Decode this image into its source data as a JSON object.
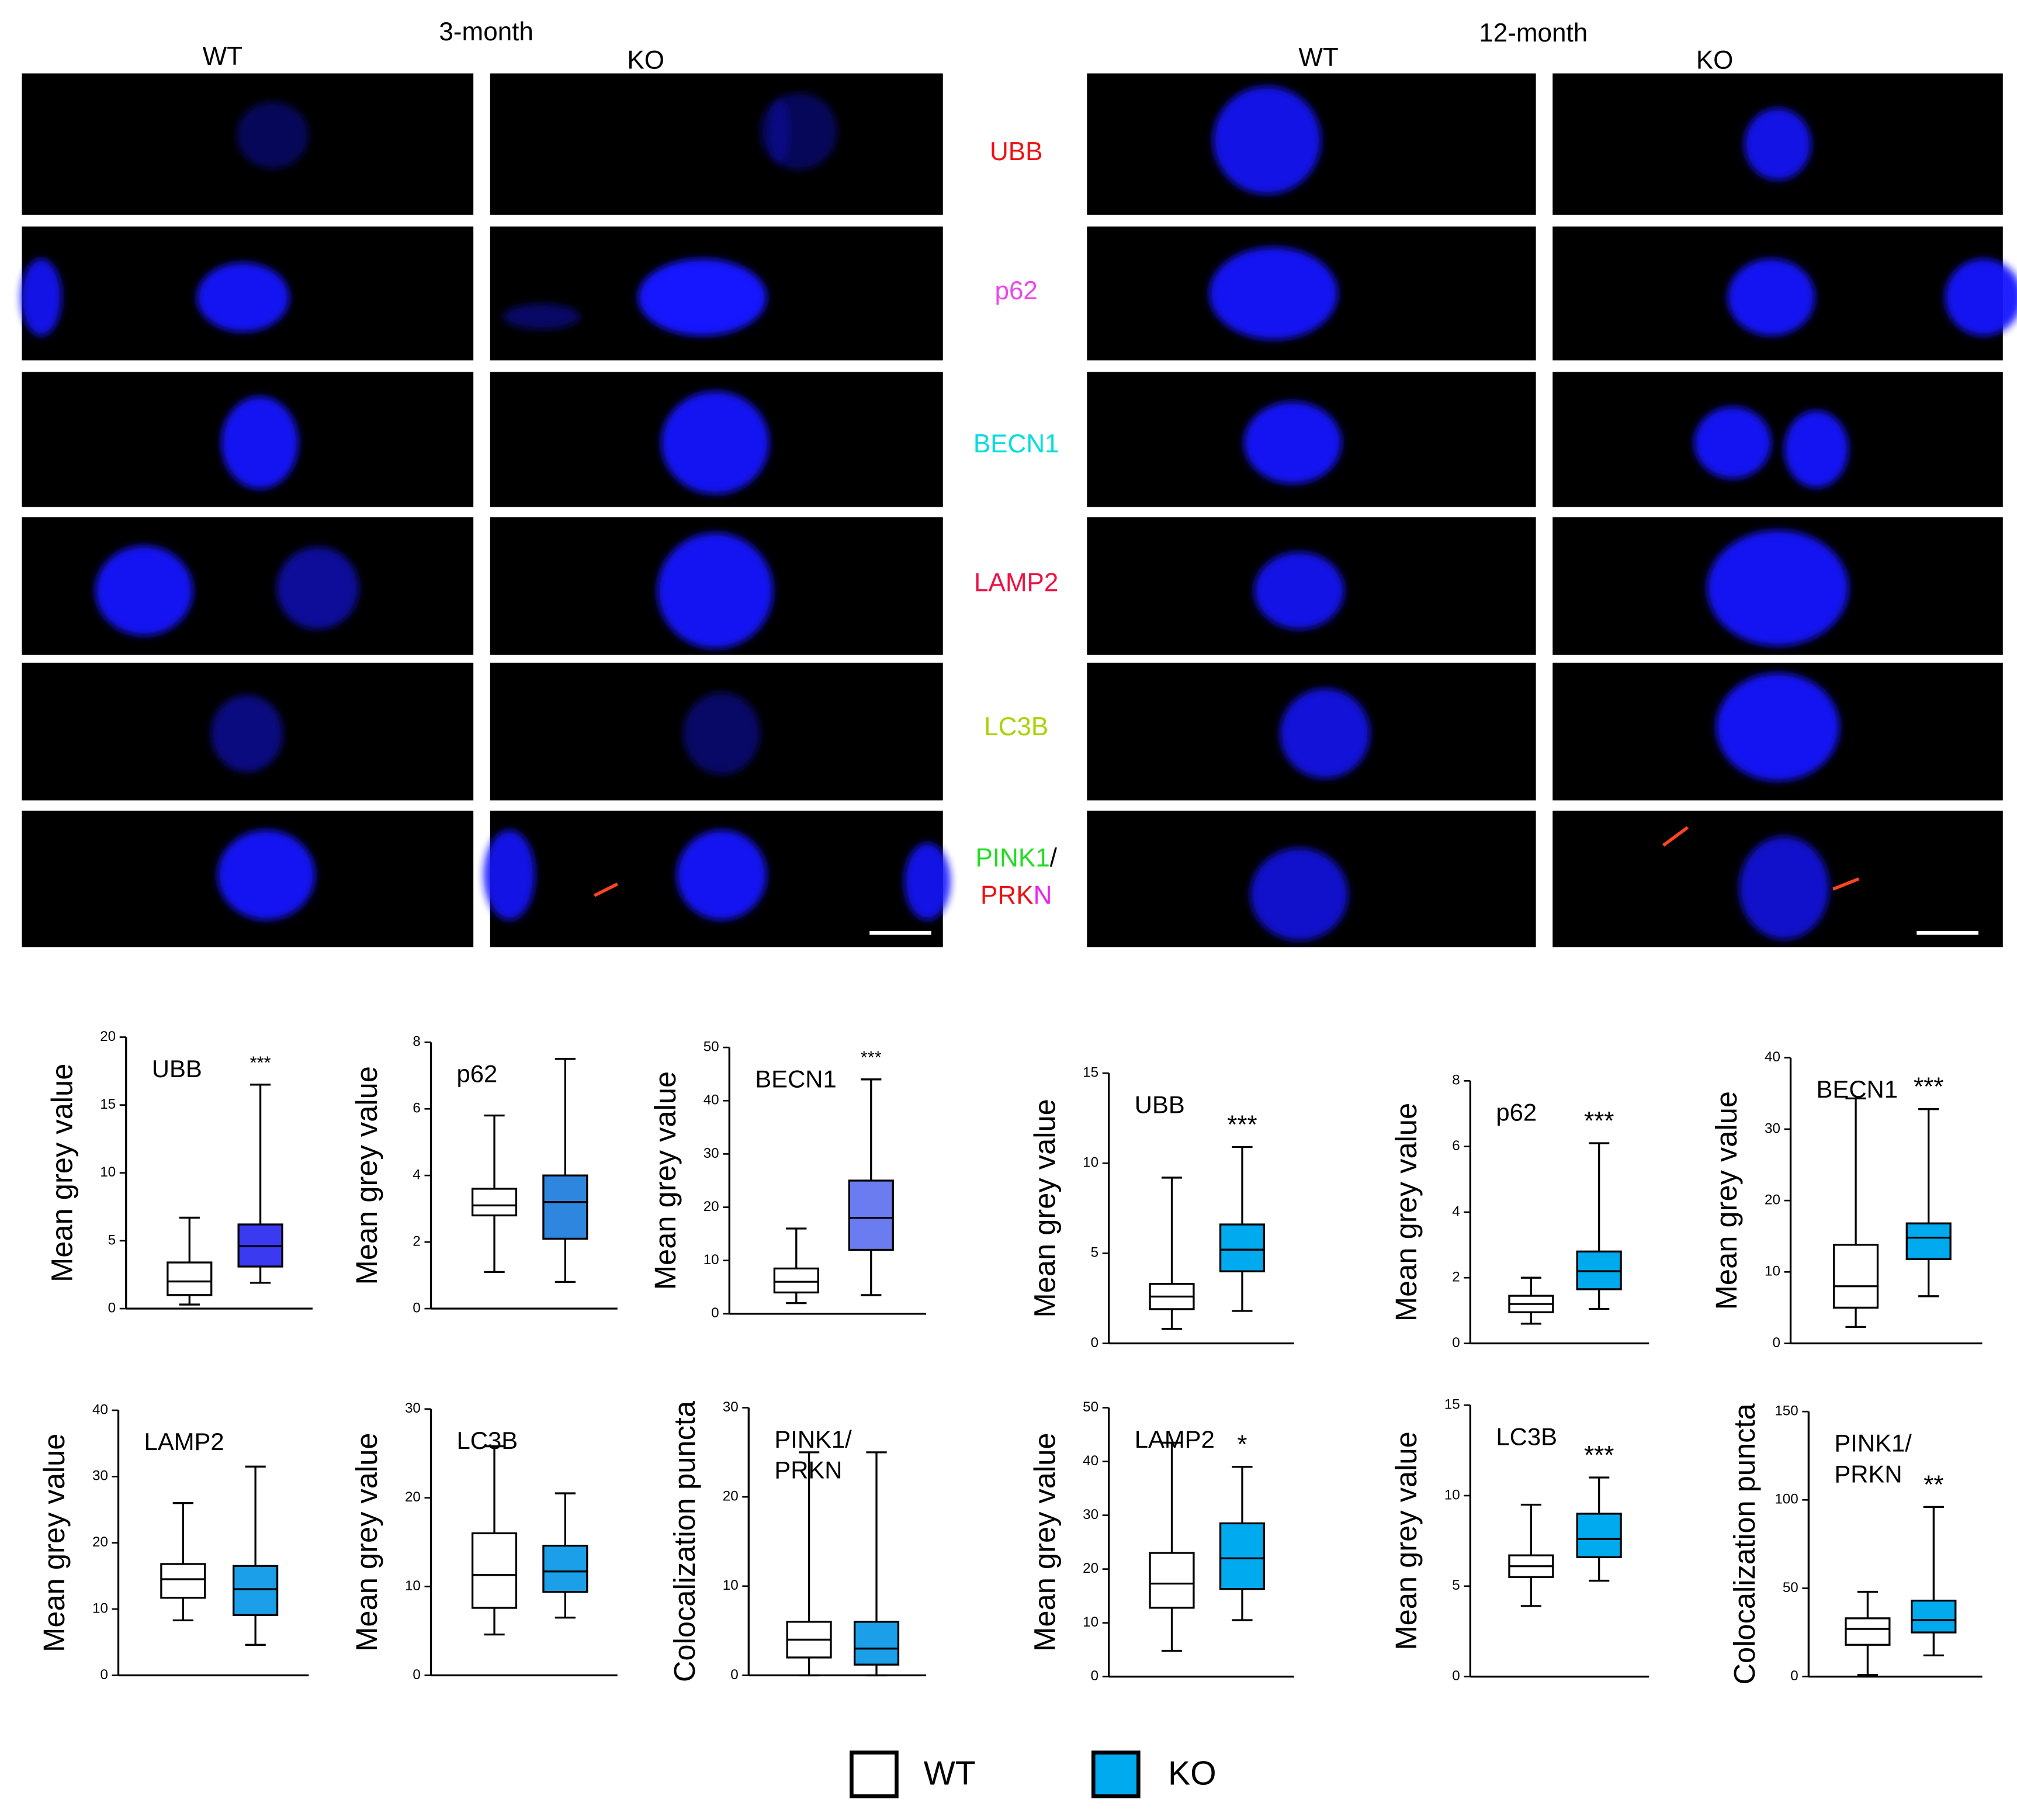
{
  "figure": {
    "headers": [
      {
        "text": "3-month",
        "x": 378,
        "y": 26
      },
      {
        "text": "WT",
        "x": 173,
        "y": 45
      },
      {
        "text": "KO",
        "x": 502,
        "y": 48
      },
      {
        "text": "12-month",
        "x": 1192,
        "y": 27
      },
      {
        "text": "WT",
        "x": 1025,
        "y": 46
      },
      {
        "text": "KO",
        "x": 1333,
        "y": 48
      }
    ],
    "row_labels": [
      [
        [
          {
            "text": "UBB",
            "color": "#ee1111"
          }
        ]
      ],
      [
        [
          {
            "text": "p62",
            "color": "#ee44ee"
          }
        ]
      ],
      [
        [
          {
            "text": "BECN1",
            "color": "#00dddd"
          }
        ]
      ],
      [
        [
          {
            "text": "LAMP2",
            "color": "#ee1144"
          }
        ]
      ],
      [
        [
          {
            "text": "LC3B",
            "color": "#a6d400"
          }
        ]
      ],
      [
        [
          {
            "text": "PINK1",
            "color": "#22dd22"
          },
          {
            "text": "/",
            "color": "#000000"
          }
        ],
        [
          {
            "text": "PRK",
            "color": "#ee1111"
          },
          {
            "text": "N",
            "color": "#ee22ee"
          }
        ]
      ]
    ]
  },
  "legend": [
    {
      "name": "WT",
      "color": "#ffffff"
    },
    {
      "name": "KO",
      "color": "#00aaee"
    }
  ],
  "chart_data": [
    {
      "type": "box",
      "title": "UBB",
      "annotation": "***",
      "ylabel": "Mean grey value",
      "ylim": [
        0,
        20
      ],
      "yticks": [
        0,
        5,
        10,
        15,
        20
      ],
      "series": [
        {
          "color": "#ffffff",
          "values": [
            0.3,
            1,
            2,
            3.4,
            6.7
          ]
        },
        {
          "color": "#3a3af0",
          "values": [
            1.9,
            3.1,
            4.6,
            6.2,
            16.5
          ]
        }
      ]
    },
    {
      "type": "box",
      "title": "p62",
      "ylabel": "Mean grey value",
      "ylim": [
        0,
        8
      ],
      "yticks": [
        0,
        2,
        4,
        6,
        8
      ],
      "series": [
        {
          "color": "#ffffff",
          "values": [
            1.1,
            2.8,
            3.1,
            3.6,
            5.8
          ]
        },
        {
          "color": "#2e86de",
          "values": [
            0.8,
            2.1,
            3.2,
            4.0,
            7.5
          ]
        }
      ]
    },
    {
      "type": "box",
      "title": "BECN1",
      "annotation": "***",
      "ylabel": "Mean grey value",
      "ylim": [
        0,
        50
      ],
      "yticks": [
        0,
        10,
        20,
        30,
        40,
        50
      ],
      "series": [
        {
          "color": "#ffffff",
          "values": [
            2,
            4,
            6,
            8.5,
            16
          ]
        },
        {
          "color": "#6b7bf0",
          "values": [
            3.5,
            12,
            18,
            25,
            44
          ]
        }
      ]
    },
    {
      "type": "box",
      "title": "UBB",
      "annotation": "***",
      "ylabel": "Mean grey value",
      "ylim": [
        0,
        15
      ],
      "yticks": [
        0,
        5,
        10,
        15
      ],
      "series": [
        {
          "color": "#ffffff",
          "values": [
            0.8,
            1.9,
            2.6,
            3.3,
            9.2
          ]
        },
        {
          "color": "#00aaee",
          "values": [
            1.8,
            4,
            5.2,
            6.6,
            10.9
          ]
        }
      ]
    },
    {
      "type": "box",
      "title": "p62",
      "annotation": "***",
      "ylabel": "Mean grey value",
      "ylim": [
        0,
        8
      ],
      "yticks": [
        0,
        2,
        4,
        6,
        8
      ],
      "series": [
        {
          "color": "#ffffff",
          "values": [
            0.6,
            0.95,
            1.2,
            1.45,
            2.0
          ]
        },
        {
          "color": "#00aaee",
          "values": [
            1.05,
            1.65,
            2.2,
            2.8,
            6.1
          ]
        }
      ]
    },
    {
      "type": "box",
      "title": "BECN1",
      "annotation": "***",
      "ylabel": "Mean grey value",
      "ylim": [
        0,
        40
      ],
      "yticks": [
        0,
        10,
        20,
        30,
        40
      ],
      "series": [
        {
          "color": "#ffffff",
          "values": [
            2.3,
            5,
            8,
            13.8,
            34.3
          ]
        },
        {
          "color": "#00aaee",
          "values": [
            6.6,
            11.8,
            14.8,
            16.8,
            32.8
          ]
        }
      ]
    },
    {
      "type": "box",
      "title": "LAMP2",
      "ylabel": "Mean grey value",
      "ylim": [
        0,
        40
      ],
      "yticks": [
        0,
        10,
        20,
        30,
        40
      ],
      "series": [
        {
          "color": "#ffffff",
          "values": [
            8.3,
            11.7,
            14.5,
            16.8,
            26
          ]
        },
        {
          "color": "#1a9fe8",
          "values": [
            4.6,
            9.1,
            13,
            16.5,
            31.5
          ]
        }
      ]
    },
    {
      "type": "box",
      "title": "LC3B",
      "ylabel": "Mean grey value",
      "ylim": [
        0,
        30
      ],
      "yticks": [
        0,
        10,
        20,
        30
      ],
      "series": [
        {
          "color": "#ffffff",
          "values": [
            4.6,
            7.6,
            11.3,
            16,
            25.8
          ]
        },
        {
          "color": "#1a9fe8",
          "values": [
            6.5,
            9.4,
            11.7,
            14.6,
            20.5
          ]
        }
      ]
    },
    {
      "type": "box",
      "title": [
        "PINK1/",
        "PRKN"
      ],
      "ylabel": "Colocalization puncta",
      "ylim": [
        0,
        30
      ],
      "yticks": [
        0,
        10,
        20,
        30
      ],
      "series": [
        {
          "color": "#ffffff",
          "values": [
            0,
            2,
            4,
            6,
            25
          ]
        },
        {
          "color": "#1a9fe8",
          "values": [
            0,
            1.2,
            3,
            6,
            25
          ]
        }
      ]
    },
    {
      "type": "box",
      "title": "LAMP2",
      "annotation": "*",
      "ylabel": "Mean grey value",
      "ylim": [
        0,
        50
      ],
      "yticks": [
        0,
        10,
        20,
        30,
        40,
        50
      ],
      "series": [
        {
          "color": "#ffffff",
          "values": [
            4.8,
            12.8,
            17.3,
            23,
            43.5
          ]
        },
        {
          "color": "#00aaee",
          "values": [
            10.5,
            16.3,
            22,
            28.5,
            39
          ]
        }
      ]
    },
    {
      "type": "box",
      "title": "LC3B",
      "annotation": "***",
      "ylabel": "Mean grey value",
      "ylim": [
        0,
        15
      ],
      "yticks": [
        0,
        5,
        10,
        15
      ],
      "series": [
        {
          "color": "#ffffff",
          "values": [
            3.9,
            5.5,
            6.1,
            6.7,
            9.5
          ]
        },
        {
          "color": "#00aaee",
          "values": [
            5.3,
            6.6,
            7.6,
            9.0,
            11
          ]
        }
      ]
    },
    {
      "type": "box",
      "title": [
        "PINK1/",
        "PRKN"
      ],
      "annotation": "**",
      "ylabel": "Colocalization puncta",
      "ylim": [
        0,
        150
      ],
      "yticks": [
        0,
        50,
        100,
        150
      ],
      "series": [
        {
          "color": "#ffffff",
          "values": [
            1,
            18,
            27,
            33,
            48
          ]
        },
        {
          "color": "#00aaee",
          "values": [
            12,
            25,
            32,
            43,
            96
          ]
        }
      ]
    }
  ]
}
